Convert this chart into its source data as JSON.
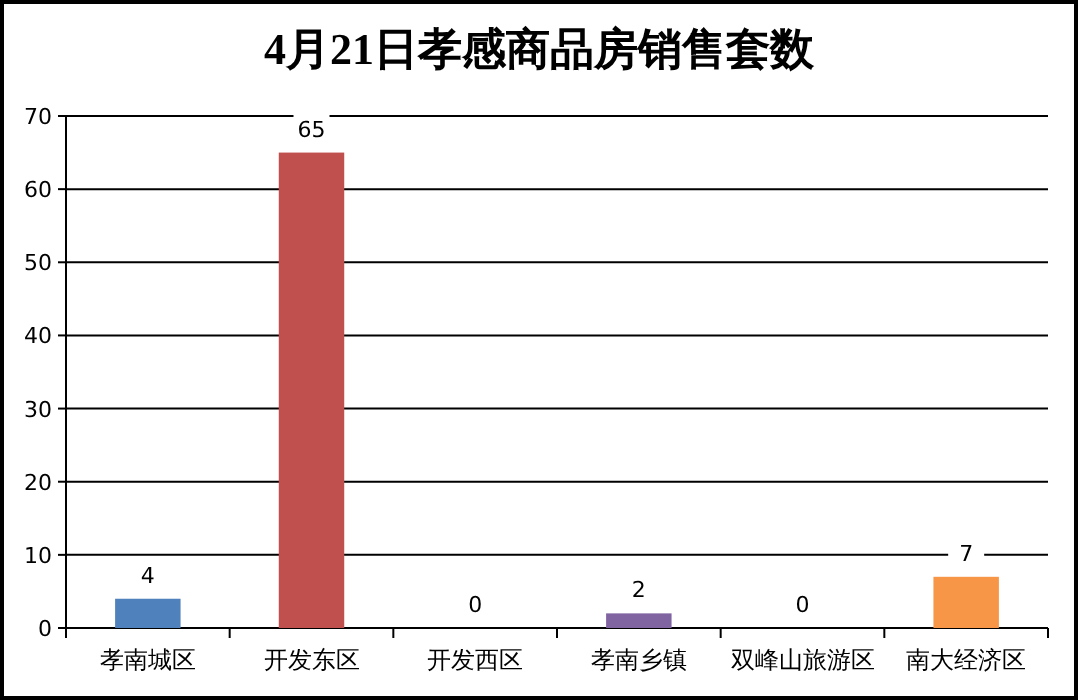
{
  "chart_data": {
    "type": "bar",
    "title": "4月21日孝感商品房销售套数",
    "categories": [
      "孝南城区",
      "开发东区",
      "开发西区",
      "孝南乡镇",
      "双峰山旅游区",
      "南大经济区"
    ],
    "values": [
      4,
      65,
      0,
      2,
      0,
      7
    ],
    "colors": [
      "#4f81bd",
      "#c0504d",
      "#9bbb59",
      "#8064a2",
      "#4bacc6",
      "#f79646"
    ],
    "ylim": [
      0,
      70
    ],
    "yticks": [
      0,
      10,
      20,
      30,
      40,
      50,
      60,
      70
    ],
    "grid": "y",
    "data_labels": true
  }
}
